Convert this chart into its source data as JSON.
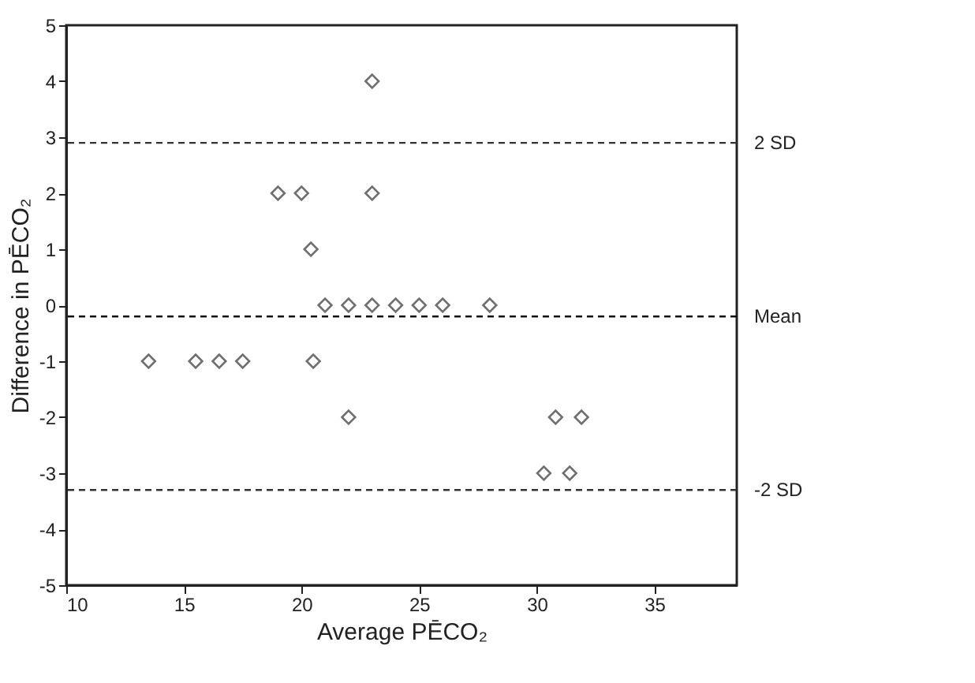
{
  "chart_data": {
    "type": "scatter",
    "xlabel": "Average PĒCO₂",
    "ylabel": "Difference in PĒCO₂",
    "x": [
      13.5,
      15.5,
      16.5,
      17.5,
      19,
      20,
      20.4,
      20.5,
      21,
      22,
      23,
      24,
      25,
      26,
      28,
      22,
      23,
      23,
      30.3,
      30.8,
      31.4,
      31.9
    ],
    "series": [
      {
        "color": "#333333",
        "values": [
          -1,
          -1,
          -1,
          -1,
          2,
          2,
          1,
          -1,
          0,
          0,
          0,
          0,
          0,
          0,
          0,
          -2,
          4,
          2,
          -3,
          -2,
          -3,
          -2
        ]
      }
    ],
    "marker": "diamond",
    "grid": false,
    "xlim": [
      10,
      38.5
    ],
    "xticks": [
      10,
      15,
      20,
      25,
      30,
      35
    ],
    "ylim": [
      -5,
      5
    ],
    "yticks": [
      -5,
      -4,
      -3,
      -2,
      -1,
      0,
      1,
      2,
      3,
      4,
      5
    ],
    "ref_lines": [
      {
        "axis": "y",
        "value": 2.9,
        "label": "2 SD",
        "line_style": "dashed",
        "color": "#333333"
      },
      {
        "axis": "y",
        "value": -0.2,
        "label": "Mean",
        "line_style": "dashed",
        "color": "#111111"
      },
      {
        "axis": "y",
        "value": -3.3,
        "label": "-2 SD",
        "line_style": "dashed",
        "color": "#333333"
      }
    ]
  }
}
